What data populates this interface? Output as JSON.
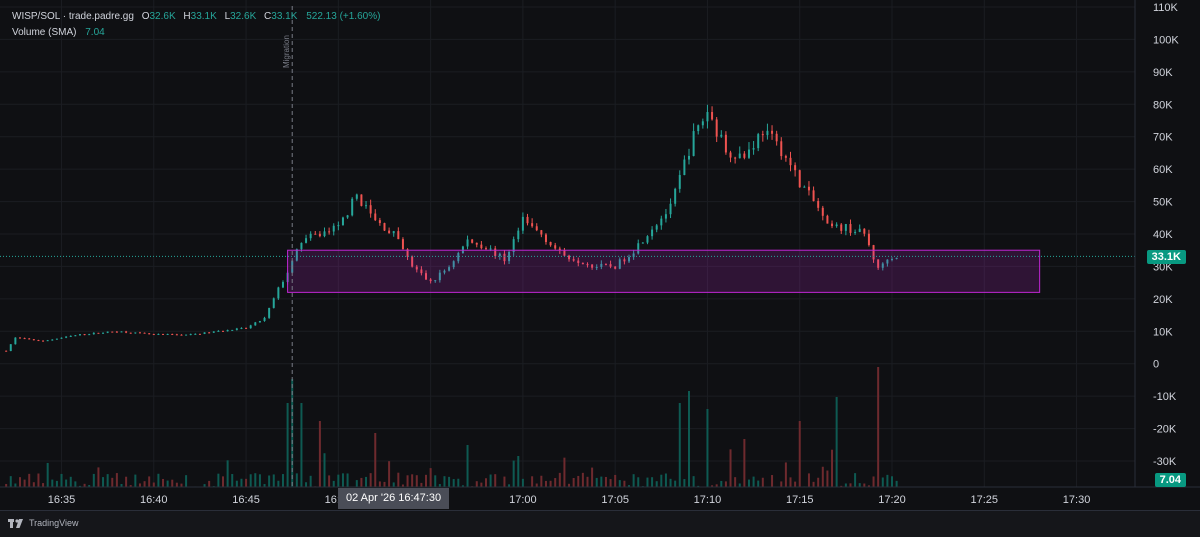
{
  "legend": {
    "symbol": "WISP/SOL · trade.padre.gg",
    "open_label": "O",
    "open": "32.6K",
    "high_label": "H",
    "high": "33.1K",
    "low_label": "L",
    "low": "32.6K",
    "close_label": "C",
    "close": "33.1K",
    "change": "522.13 (+1.60%)",
    "volume_label": "Volume (SMA)",
    "volume_value": "7.04"
  },
  "price_tag": "33.1K",
  "volume_tag": "7.04",
  "crosshair_time": "02 Apr '26   16:47:30",
  "migration_label": "Migration",
  "footer_brand": "TradingView",
  "colors": {
    "up": "#26a69a",
    "down": "#ef5350",
    "box": "#c026d3",
    "background": "#0f1013"
  },
  "chart_data": {
    "type": "candlestick",
    "x_ticks": [
      "16:35",
      "16:40",
      "16:45",
      "16:50",
      "16:55",
      "17:00",
      "17:05",
      "17:10",
      "17:15",
      "17:20",
      "17:25",
      "17:30"
    ],
    "y_ticks": [
      "110K",
      "100K",
      "90K",
      "80K",
      "70K",
      "60K",
      "50K",
      "40K",
      "30K",
      "20K",
      "10K",
      "0",
      "-10K",
      "-20K",
      "-30K"
    ],
    "y_tick_values": [
      110000,
      100000,
      90000,
      80000,
      70000,
      60000,
      50000,
      40000,
      30000,
      20000,
      10000,
      0,
      -10000,
      -20000,
      -30000
    ],
    "x_range": [
      "16:31:40",
      "17:33:10"
    ],
    "price_range": [
      -30000,
      110000
    ],
    "last_price": 33100,
    "grid": true,
    "migration_time": "16:47:30",
    "zone": {
      "time_start": "16:47:15",
      "time_end": "17:28:00",
      "price_low": 22000,
      "price_high": 35000
    },
    "price_path": [
      [
        "16:32:00",
        4000
      ],
      [
        "16:32:30",
        8000
      ],
      [
        "16:34:00",
        7000
      ],
      [
        "16:36:00",
        9000
      ],
      [
        "16:38:00",
        10000
      ],
      [
        "16:40:00",
        9000
      ],
      [
        "16:42:00",
        9000
      ],
      [
        "16:43:30",
        10000
      ],
      [
        "16:45:00",
        11000
      ],
      [
        "16:46:00",
        14000
      ],
      [
        "16:46:45",
        23000
      ],
      [
        "16:47:30",
        31000
      ],
      [
        "16:48:00",
        38000
      ],
      [
        "16:49:00",
        40000
      ],
      [
        "16:50:00",
        42000
      ],
      [
        "16:51:00",
        52000
      ],
      [
        "16:52:00",
        44000
      ],
      [
        "16:53:00",
        40000
      ],
      [
        "16:54:00",
        30000
      ],
      [
        "16:55:00",
        25000
      ],
      [
        "16:56:00",
        30000
      ],
      [
        "16:57:00",
        38000
      ],
      [
        "16:58:00",
        36000
      ],
      [
        "16:59:00",
        32000
      ],
      [
        "17:00:00",
        44000
      ],
      [
        "17:01:00",
        40000
      ],
      [
        "17:02:00",
        34000
      ],
      [
        "17:03:00",
        32000
      ],
      [
        "17:04:00",
        30000
      ],
      [
        "17:05:00",
        30000
      ],
      [
        "17:06:00",
        35000
      ],
      [
        "17:07:00",
        42000
      ],
      [
        "17:08:00",
        48000
      ],
      [
        "17:08:45",
        62000
      ],
      [
        "17:09:15",
        70000
      ],
      [
        "17:10:00",
        78000
      ],
      [
        "17:11:00",
        66000
      ],
      [
        "17:12:00",
        64000
      ],
      [
        "17:13:00",
        72000
      ],
      [
        "17:14:00",
        66000
      ],
      [
        "17:15:00",
        56000
      ],
      [
        "17:16:00",
        48000
      ],
      [
        "17:16:30",
        42000
      ],
      [
        "17:17:30",
        42000
      ],
      [
        "17:18:30",
        40000
      ],
      [
        "17:19:15",
        29000
      ],
      [
        "17:19:45",
        33000
      ],
      [
        "17:20:15",
        33100
      ]
    ],
    "volume_spikes": [
      [
        "16:47:15",
        0.7
      ],
      [
        "16:47:30",
        0.9
      ],
      [
        "16:48:00",
        0.7
      ],
      [
        "16:49:00",
        0.55
      ],
      [
        "16:52:00",
        0.45
      ],
      [
        "16:57:00",
        0.35
      ],
      [
        "17:08:30",
        0.7
      ],
      [
        "17:09:00",
        0.8
      ],
      [
        "17:10:00",
        0.65
      ],
      [
        "17:12:00",
        0.4
      ],
      [
        "17:17:00",
        0.75
      ],
      [
        "17:19:15",
        1.0
      ],
      [
        "17:15:00",
        0.55
      ]
    ],
    "candle_interval_seconds": 15
  }
}
